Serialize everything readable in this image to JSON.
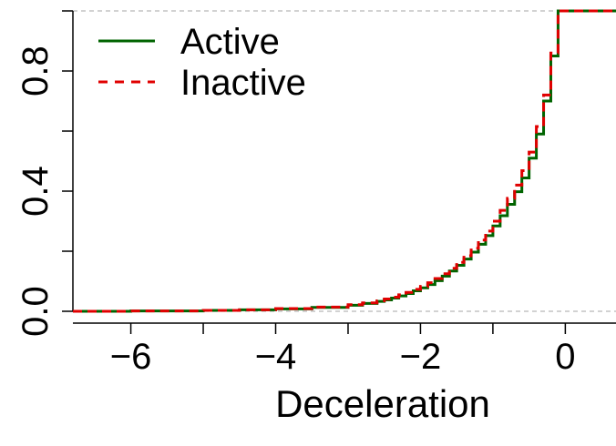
{
  "chart_data": {
    "type": "line",
    "subtype": "empirical-cdf-step",
    "xlabel": "Deceleration",
    "ylabel": "",
    "xlim": [
      -6.8,
      0.7
    ],
    "ylim": [
      0.0,
      1.0
    ],
    "x_ticks": [
      -6,
      -4,
      -2,
      0
    ],
    "x_tick_labels": [
      "−6",
      "−4",
      "−2",
      "0"
    ],
    "y_ticks": [
      0.0,
      0.2,
      0.4,
      0.6,
      0.8,
      1.0
    ],
    "y_tick_labels": [
      "0.0",
      "",
      "0.4",
      "",
      "0.8",
      ""
    ],
    "reference_lines": [
      0.0,
      1.0
    ],
    "legend_position": "top-left",
    "series": [
      {
        "name": "Active",
        "color": "#006400",
        "dash": "solid",
        "x": [
          -6.8,
          -6.0,
          -5.0,
          -4.5,
          -4.0,
          -3.5,
          -3.0,
          -2.8,
          -2.6,
          -2.5,
          -2.4,
          -2.3,
          -2.2,
          -2.1,
          -2.0,
          -1.9,
          -1.8,
          -1.7,
          -1.6,
          -1.5,
          -1.4,
          -1.3,
          -1.2,
          -1.1,
          -1.0,
          -0.9,
          -0.8,
          -0.7,
          -0.6,
          -0.5,
          -0.4,
          -0.3,
          -0.2,
          -0.1,
          0.7
        ],
        "y": [
          0.0,
          0.001,
          0.003,
          0.005,
          0.008,
          0.013,
          0.02,
          0.026,
          0.033,
          0.038,
          0.044,
          0.051,
          0.059,
          0.068,
          0.078,
          0.089,
          0.102,
          0.117,
          0.134,
          0.153,
          0.174,
          0.197,
          0.223,
          0.252,
          0.284,
          0.318,
          0.356,
          0.398,
          0.444,
          0.51,
          0.59,
          0.7,
          0.85,
          1.0,
          1.0
        ]
      },
      {
        "name": "Inactive",
        "color": "#e00000",
        "dash": "dashed",
        "x": [
          -6.8,
          -6.0,
          -5.0,
          -4.5,
          -4.0,
          -3.5,
          -3.0,
          -2.8,
          -2.6,
          -2.5,
          -2.4,
          -2.3,
          -2.2,
          -2.1,
          -2.0,
          -1.9,
          -1.8,
          -1.7,
          -1.6,
          -1.5,
          -1.4,
          -1.3,
          -1.2,
          -1.1,
          -1.0,
          -0.9,
          -0.8,
          -0.7,
          -0.6,
          -0.5,
          -0.4,
          -0.3,
          -0.2,
          -0.1,
          0.7
        ],
        "y": [
          0.0,
          0.001,
          0.003,
          0.005,
          0.009,
          0.014,
          0.022,
          0.028,
          0.035,
          0.041,
          0.047,
          0.055,
          0.063,
          0.073,
          0.083,
          0.095,
          0.109,
          0.125,
          0.143,
          0.163,
          0.185,
          0.21,
          0.237,
          0.267,
          0.3,
          0.336,
          0.376,
          0.42,
          0.468,
          0.53,
          0.615,
          0.72,
          0.86,
          1.0,
          1.0
        ]
      }
    ]
  }
}
